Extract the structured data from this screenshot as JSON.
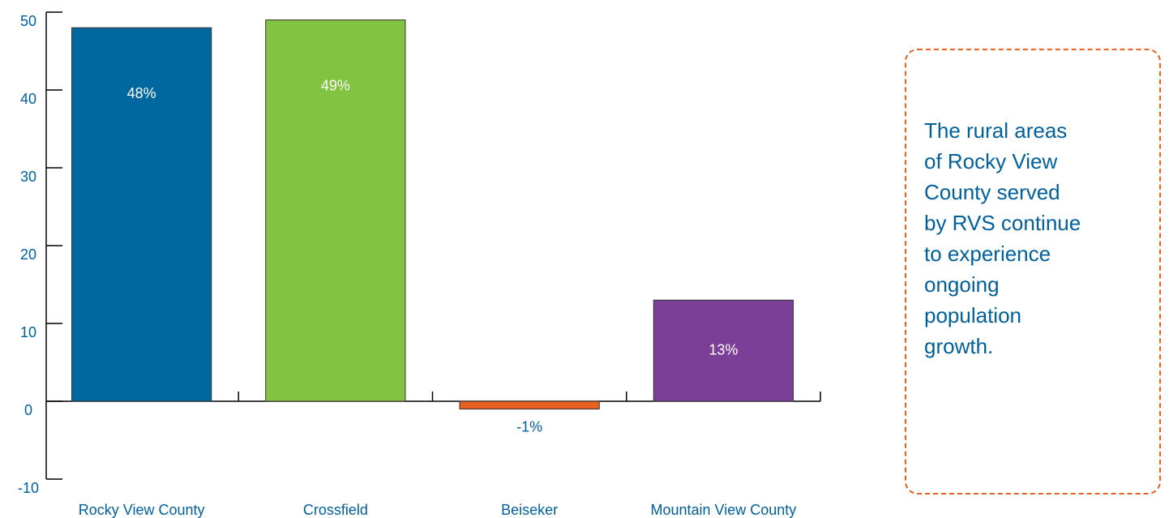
{
  "chart_data": {
    "type": "bar",
    "categories": [
      "Rocky View County",
      "Crossfield",
      "Beiseker",
      "Mountain View County"
    ],
    "values": [
      48,
      49,
      -1,
      13
    ],
    "value_labels": [
      "48%",
      "49%",
      "-1%",
      "13%"
    ],
    "colors": [
      "#00679f",
      "#82c341",
      "#e8601f",
      "#7b3f98"
    ],
    "ylim": [
      -10,
      50
    ],
    "yticks": [
      -10,
      0,
      10,
      20,
      30,
      40,
      50
    ],
    "annotation": "The rural areas of Rocky View County served by RVS continue to experience ongoing population growth."
  }
}
